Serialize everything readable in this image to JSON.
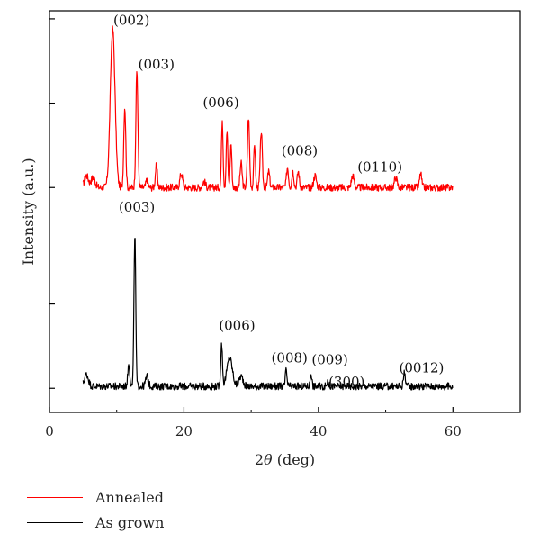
{
  "chart_data": {
    "type": "line",
    "xlabel_prefix": "2",
    "xlabel_symbol": "θ",
    "xlabel_suffix": " (deg)",
    "ylabel": "Intensity (a.u.)",
    "xlim": [
      0,
      70
    ],
    "ylim": [
      0,
      100
    ],
    "x_ticks": [
      "0",
      "20",
      "40",
      "60"
    ],
    "x_tick_values": [
      0,
      20,
      40,
      60
    ],
    "grid": false,
    "legend_position": "bottom-left",
    "series": [
      {
        "name": "Annealed",
        "color": "#ff0000",
        "x_range": [
          5,
          60
        ],
        "baseline": 56,
        "noise": 0.9,
        "peaks": [
          {
            "x": 5.5,
            "y": 59,
            "w": 0.3
          },
          {
            "x": 6.5,
            "y": 58.5,
            "w": 0.3
          },
          {
            "x": 9.4,
            "y": 95.5,
            "w": 0.35
          },
          {
            "x": 11.2,
            "y": 76,
            "w": 0.15
          },
          {
            "x": 13.0,
            "y": 85,
            "w": 0.15
          },
          {
            "x": 14.5,
            "y": 58,
            "w": 0.15
          },
          {
            "x": 15.9,
            "y": 61.5,
            "w": 0.15
          },
          {
            "x": 19.6,
            "y": 59.5,
            "w": 0.2
          },
          {
            "x": 23.0,
            "y": 57.5,
            "w": 0.2
          },
          {
            "x": 25.7,
            "y": 73,
            "w": 0.12
          },
          {
            "x": 26.4,
            "y": 70,
            "w": 0.12
          },
          {
            "x": 27.0,
            "y": 67,
            "w": 0.12
          },
          {
            "x": 28.5,
            "y": 62,
            "w": 0.15
          },
          {
            "x": 29.6,
            "y": 73.5,
            "w": 0.15
          },
          {
            "x": 30.5,
            "y": 67,
            "w": 0.12
          },
          {
            "x": 31.5,
            "y": 70,
            "w": 0.15
          },
          {
            "x": 32.6,
            "y": 60,
            "w": 0.15
          },
          {
            "x": 35.4,
            "y": 61,
            "w": 0.15
          },
          {
            "x": 36.2,
            "y": 60,
            "w": 0.15
          },
          {
            "x": 37.0,
            "y": 60,
            "w": 0.15
          },
          {
            "x": 39.5,
            "y": 59,
            "w": 0.2
          },
          {
            "x": 45.1,
            "y": 59,
            "w": 0.2
          },
          {
            "x": 51.5,
            "y": 58.5,
            "w": 0.2
          },
          {
            "x": 55.2,
            "y": 59.5,
            "w": 0.15
          }
        ]
      },
      {
        "name": "As grown",
        "color": "#000000",
        "x_range": [
          5,
          60
        ],
        "baseline": 6.5,
        "noise": 0.9,
        "peaks": [
          {
            "x": 5.5,
            "y": 9.5,
            "w": 0.3
          },
          {
            "x": 11.8,
            "y": 12,
            "w": 0.15
          },
          {
            "x": 12.7,
            "y": 44.5,
            "w": 0.13
          },
          {
            "x": 14.5,
            "y": 9,
            "w": 0.2
          },
          {
            "x": 25.6,
            "y": 17,
            "w": 0.13
          },
          {
            "x": 26.8,
            "y": 13.5,
            "w": 0.4
          },
          {
            "x": 28.5,
            "y": 9,
            "w": 0.3
          },
          {
            "x": 35.2,
            "y": 10.5,
            "w": 0.12
          },
          {
            "x": 38.9,
            "y": 10,
            "w": 0.12
          },
          {
            "x": 41.4,
            "y": 8,
            "w": 0.12
          },
          {
            "x": 52.8,
            "y": 10,
            "w": 0.15
          }
        ]
      }
    ],
    "annotations": [
      {
        "text": "(002)",
        "x": 9.5,
        "y": 96.5,
        "series": "Annealed"
      },
      {
        "text": "(003)",
        "x": 13.2,
        "y": 85.5,
        "series": "Annealed"
      },
      {
        "text": "(006)",
        "x": 22.8,
        "y": 76,
        "series": "Annealed"
      },
      {
        "text": "(008)",
        "x": 34.5,
        "y": 64,
        "series": "Annealed"
      },
      {
        "text": "(0110)",
        "x": 45.8,
        "y": 60,
        "series": "Annealed"
      },
      {
        "text": "(003)",
        "x": 10.3,
        "y": 50,
        "series": "As grown"
      },
      {
        "text": "(006)",
        "x": 25.2,
        "y": 20.5,
        "series": "As grown"
      },
      {
        "text": "(008)",
        "x": 33.0,
        "y": 12.5,
        "series": "As grown"
      },
      {
        "text": "(009)",
        "x": 39.0,
        "y": 12,
        "series": "As grown"
      },
      {
        "text": "(300)",
        "x": 41.5,
        "y": 6.5,
        "series": "As grown"
      },
      {
        "text": "(0012)",
        "x": 52.0,
        "y": 10,
        "series": "As grown"
      }
    ]
  },
  "legend": {
    "items": [
      {
        "label": "Annealed",
        "color": "#ff0000"
      },
      {
        "label": "As grown",
        "color": "#000000"
      }
    ]
  }
}
